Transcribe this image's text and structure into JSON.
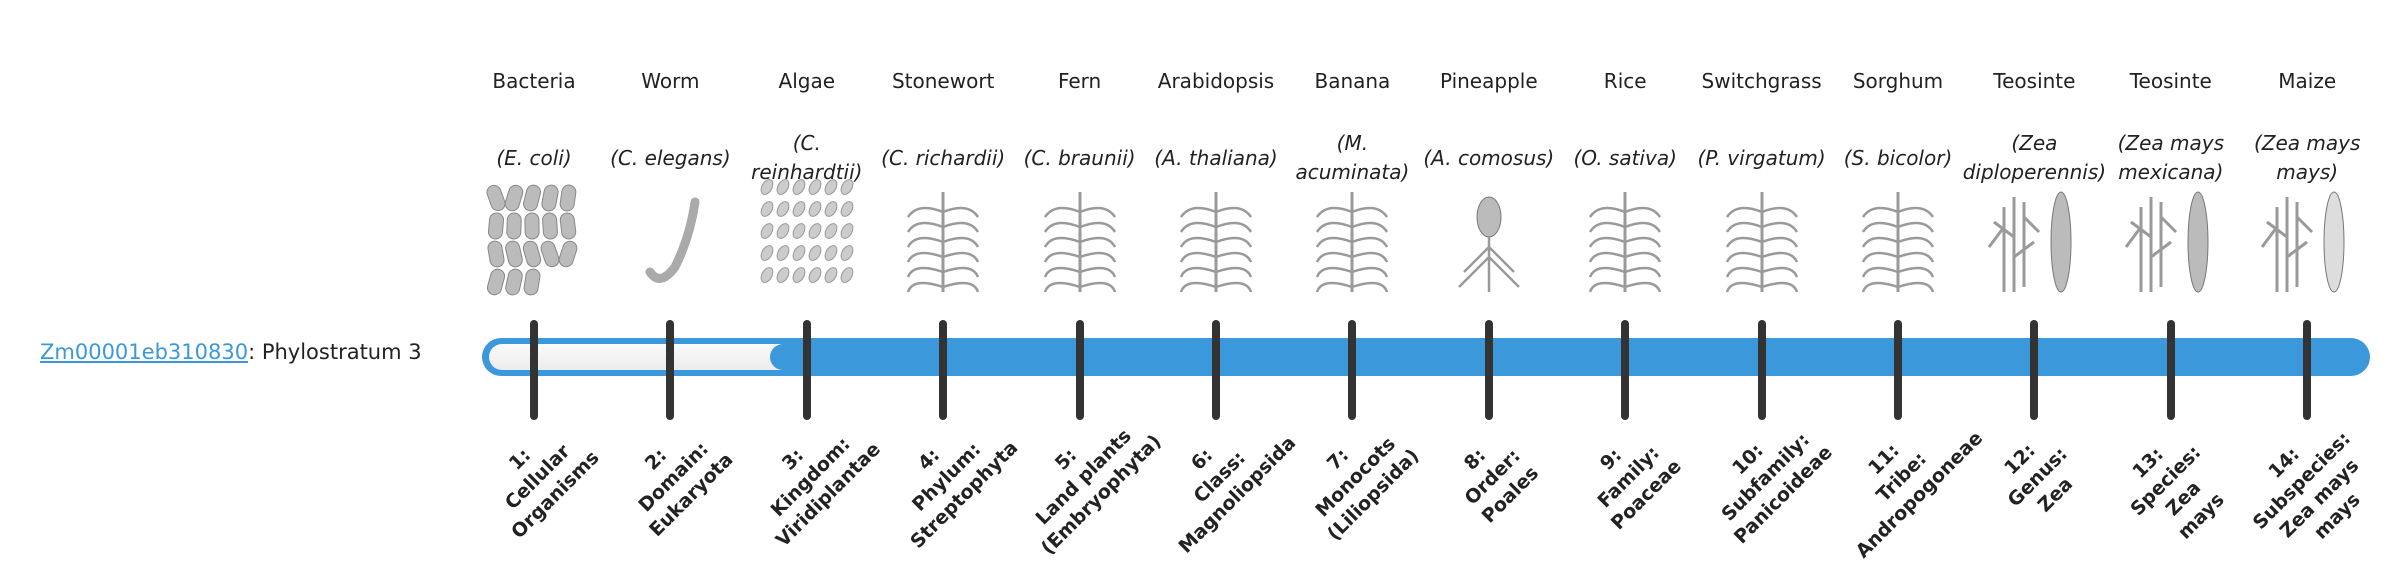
{
  "gene": {
    "id": "Zm00001eb310830",
    "suffix": ": Phylostratum 3"
  },
  "phylostratum": 3,
  "accent_color": "#3a98db",
  "organisms": [
    {
      "common": "Bacteria",
      "scientific": "(E. coli)",
      "icon": "bacteria-icon"
    },
    {
      "common": "Worm",
      "scientific": "(C. elegans)",
      "icon": "worm-icon"
    },
    {
      "common": "Algae",
      "scientific": "(C. reinhardtii)",
      "icon": "algae-icon"
    },
    {
      "common": "Stonewort",
      "scientific": "(C. richardii)",
      "icon": "stonewort-icon"
    },
    {
      "common": "Fern",
      "scientific": "(C. braunii)",
      "icon": "fern-icon"
    },
    {
      "common": "Arabidopsis",
      "scientific": "(A. thaliana)",
      "icon": "arabidopsis-icon"
    },
    {
      "common": "Banana",
      "scientific": "(M. acuminata)",
      "icon": "banana-icon"
    },
    {
      "common": "Pineapple",
      "scientific": "(A. comosus)",
      "icon": "pineapple-icon"
    },
    {
      "common": "Rice",
      "scientific": "(O. sativa)",
      "icon": "rice-icon"
    },
    {
      "common": "Switchgrass",
      "scientific": "(P. virgatum)",
      "icon": "switchgrass-icon"
    },
    {
      "common": "Sorghum",
      "scientific": "(S. bicolor)",
      "icon": "sorghum-icon"
    },
    {
      "common": "Teosinte",
      "scientific": "(Zea diploperennis)",
      "icon": "teosinte-icon"
    },
    {
      "common": "Teosinte",
      "scientific": "(Zea mays mexicana)",
      "icon": "teosinte-icon"
    },
    {
      "common": "Maize",
      "scientific": "(Zea mays mays)",
      "icon": "maize-icon"
    }
  ],
  "strata": [
    [
      "1:",
      "Cellular",
      "Organisms"
    ],
    [
      "2:",
      "Domain:",
      "Eukaryota"
    ],
    [
      "3:",
      "Kingdom:",
      "Viridiplantae"
    ],
    [
      "4:",
      "Phylum:",
      "Streptophyta"
    ],
    [
      "5:",
      "Land plants",
      "(Embryophyta)"
    ],
    [
      "6:",
      "Class:",
      "Magnoliopsida"
    ],
    [
      "7:",
      "Monocots",
      "(Liliopsida)"
    ],
    [
      "8:",
      "Order:",
      "Poales"
    ],
    [
      "9:",
      "Family:",
      "Poaceae"
    ],
    [
      "10:",
      "Subfamily:",
      "Panicoideae"
    ],
    [
      "11:",
      "Tribe:",
      "Andropogoneae"
    ],
    [
      "12:",
      "Genus:",
      "Zea"
    ],
    [
      "13:",
      "Species:",
      "Zea",
      "mays"
    ],
    [
      "14:",
      "Subspecies:",
      "Zea mays",
      "mays"
    ]
  ]
}
